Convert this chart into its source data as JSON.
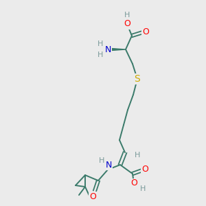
{
  "bg_color": "#ebebeb",
  "bond_color": "#3a7a6a",
  "atom_colors": {
    "O": "#ff0000",
    "N": "#0000cc",
    "S": "#ccaa00",
    "H": "#7a9a9a",
    "C": "#3a7a6a"
  },
  "figsize": [
    3.0,
    3.0
  ],
  "dpi": 100
}
